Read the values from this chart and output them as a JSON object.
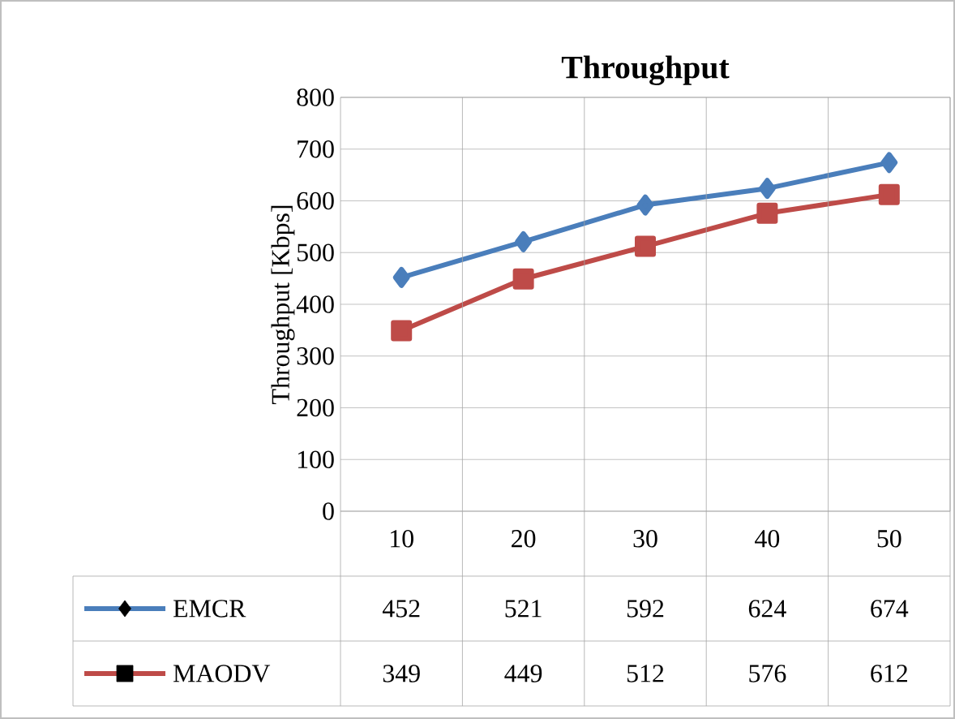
{
  "chart_data": {
    "type": "line",
    "title": "Throughput",
    "ylabel": "Throughput [Kbps]",
    "categories": [
      "10",
      "20",
      "30",
      "40",
      "50"
    ],
    "series": [
      {
        "name": "EMCR",
        "color": "#4a7ebb",
        "marker": "diamond",
        "values": [
          452,
          521,
          592,
          624,
          674
        ]
      },
      {
        "name": "MAODV",
        "color": "#be4b48",
        "marker": "square",
        "values": [
          349,
          449,
          512,
          576,
          612
        ]
      }
    ],
    "ylim": [
      0,
      800
    ],
    "yticks": [
      0,
      100,
      200,
      300,
      400,
      500,
      600,
      700,
      800
    ],
    "grid": "y",
    "legend": "bottom",
    "data_labels": true
  }
}
